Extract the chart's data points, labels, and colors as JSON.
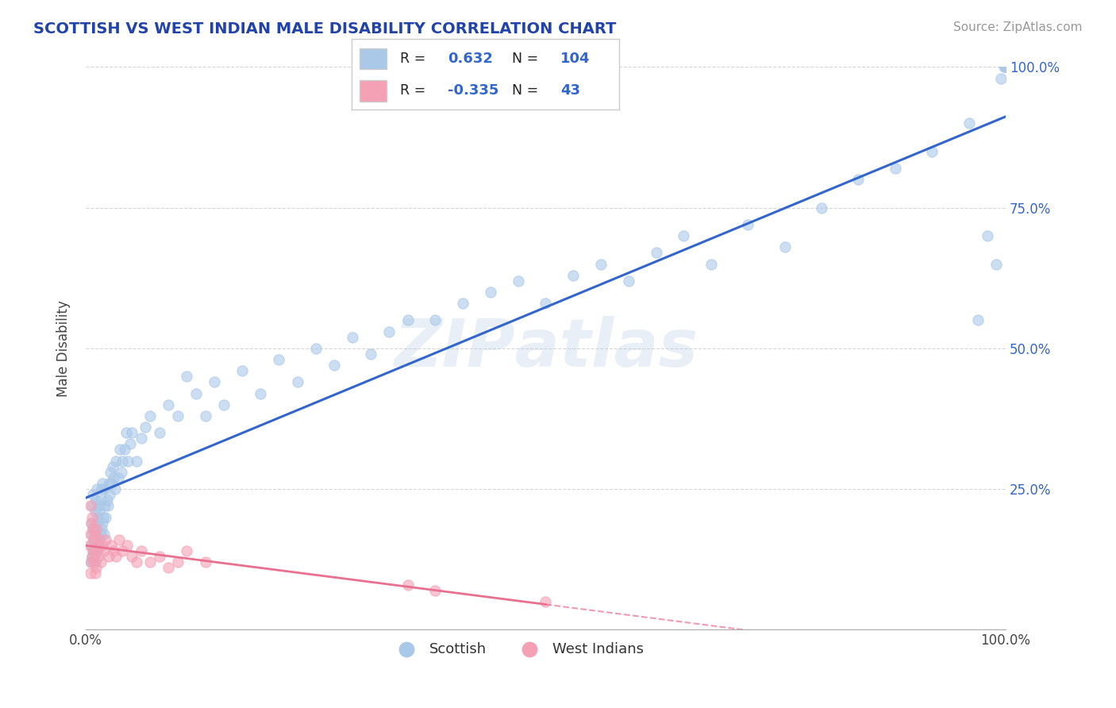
{
  "title": "SCOTTISH VS WEST INDIAN MALE DISABILITY CORRELATION CHART",
  "source": "Source: ZipAtlas.com",
  "ylabel": "Male Disability",
  "xlim": [
    0.0,
    1.0
  ],
  "ylim": [
    0.0,
    1.0
  ],
  "y_tick_positions": [
    0.25,
    0.5,
    0.75,
    1.0
  ],
  "y_tick_labels": [
    "25.0%",
    "50.0%",
    "75.0%",
    "100.0%"
  ],
  "scottish_R": 0.632,
  "scottish_N": 104,
  "westindian_R": -0.335,
  "westindian_N": 43,
  "scottish_color": "#aac8e8",
  "westindian_color": "#f4a0b5",
  "scottish_line_color": "#3366cc",
  "westindian_line_color": "#e87090",
  "background_color": "#ffffff",
  "grid_color": "#cccccc",
  "title_color": "#2244aa",
  "source_color": "#999999",
  "legend_box_color": "#cccccc",
  "scottish_x": [
    0.005,
    0.006,
    0.006,
    0.007,
    0.007,
    0.007,
    0.008,
    0.008,
    0.008,
    0.009,
    0.009,
    0.01,
    0.01,
    0.01,
    0.011,
    0.011,
    0.011,
    0.012,
    0.012,
    0.012,
    0.013,
    0.013,
    0.014,
    0.014,
    0.015,
    0.015,
    0.016,
    0.016,
    0.017,
    0.017,
    0.018,
    0.018,
    0.019,
    0.02,
    0.02,
    0.021,
    0.022,
    0.023,
    0.024,
    0.025,
    0.026,
    0.027,
    0.028,
    0.029,
    0.03,
    0.032,
    0.033,
    0.035,
    0.037,
    0.039,
    0.04,
    0.042,
    0.044,
    0.046,
    0.048,
    0.05,
    0.055,
    0.06,
    0.065,
    0.07,
    0.08,
    0.09,
    0.1,
    0.11,
    0.12,
    0.13,
    0.14,
    0.15,
    0.17,
    0.19,
    0.21,
    0.23,
    0.25,
    0.27,
    0.29,
    0.31,
    0.33,
    0.35,
    0.38,
    0.41,
    0.44,
    0.47,
    0.5,
    0.53,
    0.56,
    0.59,
    0.62,
    0.65,
    0.68,
    0.72,
    0.76,
    0.8,
    0.84,
    0.88,
    0.92,
    0.96,
    0.97,
    0.98,
    0.99,
    0.995,
    0.998,
    0.999,
    1.0,
    1.0
  ],
  "scottish_y": [
    0.12,
    0.15,
    0.19,
    0.13,
    0.17,
    0.22,
    0.14,
    0.18,
    0.24,
    0.13,
    0.16,
    0.12,
    0.16,
    0.21,
    0.14,
    0.18,
    0.23,
    0.15,
    0.19,
    0.25,
    0.14,
    0.2,
    0.16,
    0.22,
    0.15,
    0.21,
    0.17,
    0.23,
    0.18,
    0.25,
    0.19,
    0.26,
    0.2,
    0.17,
    0.25,
    0.22,
    0.2,
    0.23,
    0.22,
    0.26,
    0.24,
    0.28,
    0.26,
    0.29,
    0.27,
    0.25,
    0.3,
    0.27,
    0.32,
    0.28,
    0.3,
    0.32,
    0.35,
    0.3,
    0.33,
    0.35,
    0.3,
    0.34,
    0.36,
    0.38,
    0.35,
    0.4,
    0.38,
    0.45,
    0.42,
    0.38,
    0.44,
    0.4,
    0.46,
    0.42,
    0.48,
    0.44,
    0.5,
    0.47,
    0.52,
    0.49,
    0.53,
    0.55,
    0.55,
    0.58,
    0.6,
    0.62,
    0.58,
    0.63,
    0.65,
    0.62,
    0.67,
    0.7,
    0.65,
    0.72,
    0.68,
    0.75,
    0.8,
    0.82,
    0.85,
    0.9,
    0.55,
    0.7,
    0.65,
    0.98,
    1.0,
    1.0,
    1.0,
    1.0
  ],
  "westindian_x": [
    0.004,
    0.005,
    0.005,
    0.005,
    0.006,
    0.006,
    0.007,
    0.007,
    0.008,
    0.008,
    0.009,
    0.009,
    0.01,
    0.01,
    0.011,
    0.011,
    0.012,
    0.013,
    0.014,
    0.015,
    0.016,
    0.018,
    0.02,
    0.022,
    0.025,
    0.028,
    0.03,
    0.033,
    0.036,
    0.04,
    0.045,
    0.05,
    0.055,
    0.06,
    0.07,
    0.08,
    0.09,
    0.1,
    0.11,
    0.13,
    0.35,
    0.38,
    0.5
  ],
  "westindian_y": [
    0.15,
    0.1,
    0.17,
    0.22,
    0.12,
    0.19,
    0.13,
    0.2,
    0.14,
    0.18,
    0.12,
    0.16,
    0.1,
    0.17,
    0.11,
    0.18,
    0.14,
    0.15,
    0.13,
    0.16,
    0.12,
    0.15,
    0.14,
    0.16,
    0.13,
    0.15,
    0.14,
    0.13,
    0.16,
    0.14,
    0.15,
    0.13,
    0.12,
    0.14,
    0.12,
    0.13,
    0.11,
    0.12,
    0.14,
    0.12,
    0.08,
    0.07,
    0.05
  ]
}
